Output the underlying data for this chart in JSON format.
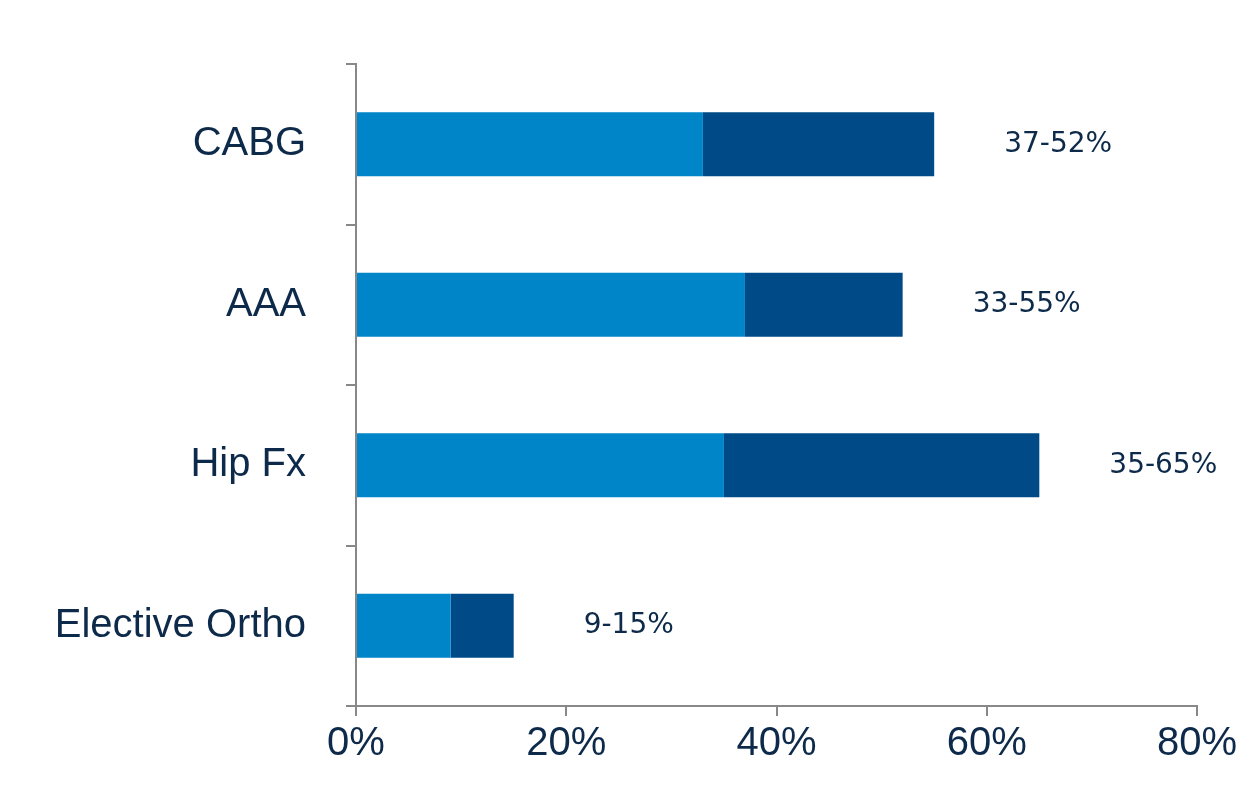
{
  "chart_data": {
    "type": "bar",
    "orientation": "horizontal",
    "stacked": true,
    "categories": [
      "CABG",
      "AAA",
      "Hip Fx",
      "Elective Ortho"
    ],
    "series": [
      {
        "color": "#0085c8",
        "values": [
          33,
          37,
          35,
          9
        ]
      },
      {
        "color": "#004b87",
        "values": [
          22,
          15,
          30,
          6
        ]
      }
    ],
    "xlim": [
      0,
      80
    ],
    "xticks": [
      {
        "value": 0,
        "label": "0%"
      },
      {
        "value": 20,
        "label": "20%"
      },
      {
        "value": 40,
        "label": "40%"
      },
      {
        "value": 60,
        "label": "60%"
      },
      {
        "value": 80,
        "label": "80%"
      }
    ],
    "grid": false,
    "legend": false,
    "annotations": [
      {
        "text": "37-52%",
        "x": 55,
        "y": "CABG"
      },
      {
        "text": "33-55%",
        "x": 52,
        "y": "AAA"
      },
      {
        "text": "35-65%",
        "x": 65,
        "y": "Hip Fx"
      },
      {
        "text": "9-15%",
        "x": 15,
        "y": "Elective Ortho"
      }
    ]
  }
}
